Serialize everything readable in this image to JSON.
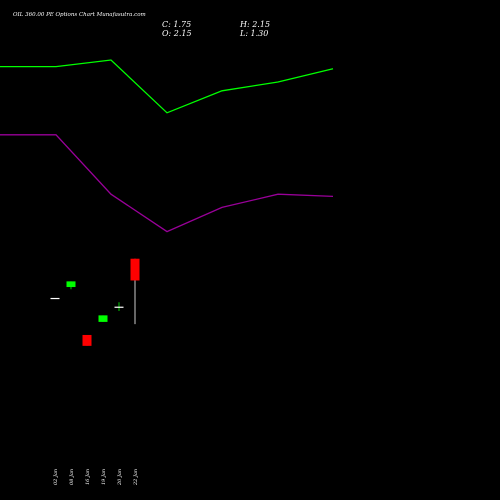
{
  "title": "OIL 360.00 PE Options Chart Munafasutra.com",
  "ohlc": {
    "close_label": "C: 1.75",
    "high_label": "H: 2.15",
    "open_label": "O: 2.15",
    "low_label": "L: 1.30"
  },
  "colors": {
    "background": "#000000",
    "up": "#00ff00",
    "down": "#ff0000",
    "line_green": "#00ff00",
    "line_purple": "#990099"
  },
  "chart_data": {
    "type": "candlestick",
    "categories": [
      "02 Jan",
      "08 Jan",
      "16 Jan",
      "19 Jan",
      "20 Jan",
      "22 Jan"
    ],
    "candles": [
      {
        "open": 3.5,
        "high": 3.5,
        "low": 3.5,
        "close": 3.5
      },
      {
        "open": 3.75,
        "high": 3.88,
        "low": 3.7,
        "close": 3.88
      },
      {
        "open": 2.65,
        "high": 2.65,
        "low": 2.4,
        "close": 2.4
      },
      {
        "open": 2.95,
        "high": 3.1,
        "low": 2.95,
        "close": 3.1
      },
      {
        "open": 3.3,
        "high": 3.4,
        "low": 3.2,
        "close": 3.3
      },
      {
        "open": 4.4,
        "high": 4.4,
        "low": 2.9,
        "close": 3.9
      }
    ],
    "ylim": [
      1.8,
      4.6
    ],
    "overlay_lines": [
      {
        "color": "#00ff00",
        "values": [
          0.97,
          0.97,
          1.0,
          0.76,
          0.86,
          0.9,
          0.96
        ]
      },
      {
        "color": "#990099",
        "values": [
          0.66,
          0.66,
          0.39,
          0.22,
          0.33,
          0.39,
          0.38
        ]
      }
    ]
  }
}
